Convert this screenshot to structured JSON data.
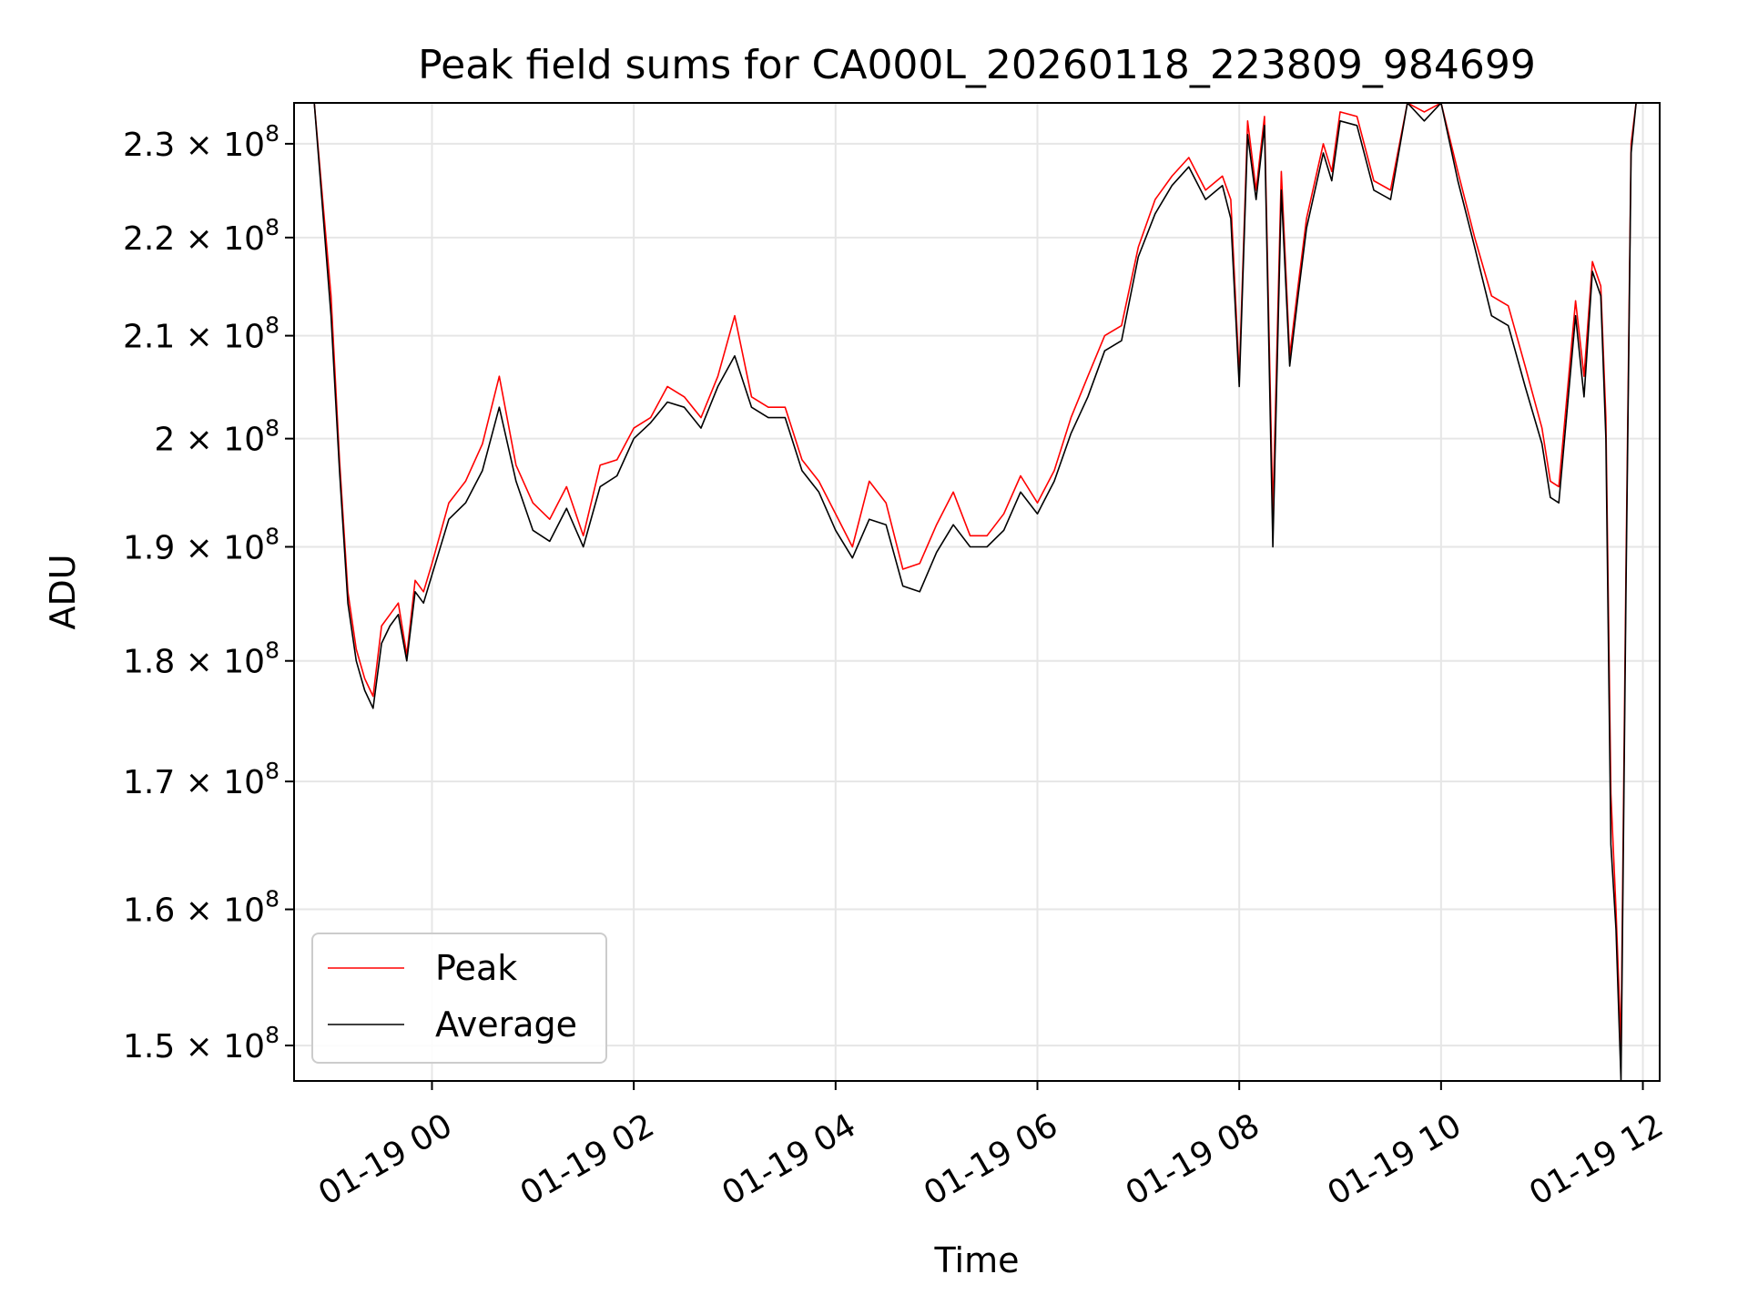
{
  "chart_data": {
    "type": "line",
    "title": "Peak field sums for CA000L_20260118_223809_984699",
    "xlabel": "Time",
    "ylabel": "ADU",
    "x_axis_type": "datetime",
    "xlim": [
      "2026-01-18 22:38",
      "2026-01-19 12:10"
    ],
    "ylim": [
      147500000,
      234500000
    ],
    "y_scale": "log",
    "grid": true,
    "legend": "lower-left",
    "x_ticks": [
      {
        "value": "2026-01-19 00:00",
        "label": "01-19 00"
      },
      {
        "value": "2026-01-19 02:00",
        "label": "01-19 02"
      },
      {
        "value": "2026-01-19 04:00",
        "label": "01-19 04"
      },
      {
        "value": "2026-01-19 06:00",
        "label": "01-19 06"
      },
      {
        "value": "2026-01-19 08:00",
        "label": "01-19 08"
      },
      {
        "value": "2026-01-19 10:00",
        "label": "01-19 10"
      },
      {
        "value": "2026-01-19 12:00",
        "label": "01-19 12"
      }
    ],
    "y_ticks": [
      {
        "value": 150000000,
        "mant": "1.5",
        "exp": "8"
      },
      {
        "value": 160000000,
        "mant": "1.6",
        "exp": "8"
      },
      {
        "value": 170000000,
        "mant": "1.7",
        "exp": "8"
      },
      {
        "value": 180000000,
        "mant": "1.8",
        "exp": "8"
      },
      {
        "value": 190000000,
        "mant": "1.9",
        "exp": "8"
      },
      {
        "value": 200000000,
        "mant": "2",
        "exp": "8"
      },
      {
        "value": 210000000,
        "mant": "2.1",
        "exp": "8"
      },
      {
        "value": 220000000,
        "mant": "2.2",
        "exp": "8"
      },
      {
        "value": 230000000,
        "mant": "2.3",
        "exp": "8"
      }
    ],
    "series": [
      {
        "name": "Peak",
        "color": "#ff0000"
      },
      {
        "name": "Average",
        "color": "#000000"
      }
    ],
    "times": [
      "2026-01-18 22:38",
      "2026-01-18 22:50",
      "2026-01-18 23:00",
      "2026-01-18 23:05",
      "2026-01-18 23:10",
      "2026-01-18 23:15",
      "2026-01-18 23:20",
      "2026-01-18 23:25",
      "2026-01-18 23:30",
      "2026-01-18 23:35",
      "2026-01-18 23:40",
      "2026-01-18 23:45",
      "2026-01-18 23:50",
      "2026-01-18 23:55",
      "2026-01-19 00:00",
      "2026-01-19 00:10",
      "2026-01-19 00:20",
      "2026-01-19 00:30",
      "2026-01-19 00:40",
      "2026-01-19 00:50",
      "2026-01-19 01:00",
      "2026-01-19 01:10",
      "2026-01-19 01:20",
      "2026-01-19 01:30",
      "2026-01-19 01:40",
      "2026-01-19 01:50",
      "2026-01-19 02:00",
      "2026-01-19 02:10",
      "2026-01-19 02:20",
      "2026-01-19 02:30",
      "2026-01-19 02:40",
      "2026-01-19 02:50",
      "2026-01-19 03:00",
      "2026-01-19 03:10",
      "2026-01-19 03:20",
      "2026-01-19 03:30",
      "2026-01-19 03:40",
      "2026-01-19 03:50",
      "2026-01-19 04:00",
      "2026-01-19 04:10",
      "2026-01-19 04:20",
      "2026-01-19 04:30",
      "2026-01-19 04:40",
      "2026-01-19 04:50",
      "2026-01-19 05:00",
      "2026-01-19 05:10",
      "2026-01-19 05:20",
      "2026-01-19 05:30",
      "2026-01-19 05:40",
      "2026-01-19 05:50",
      "2026-01-19 06:00",
      "2026-01-19 06:10",
      "2026-01-19 06:20",
      "2026-01-19 06:30",
      "2026-01-19 06:40",
      "2026-01-19 06:50",
      "2026-01-19 07:00",
      "2026-01-19 07:10",
      "2026-01-19 07:20",
      "2026-01-19 07:30",
      "2026-01-19 07:40",
      "2026-01-19 07:50",
      "2026-01-19 07:55",
      "2026-01-19 08:00",
      "2026-01-19 08:05",
      "2026-01-19 08:10",
      "2026-01-19 08:15",
      "2026-01-19 08:20",
      "2026-01-19 08:25",
      "2026-01-19 08:30",
      "2026-01-19 08:35",
      "2026-01-19 08:40",
      "2026-01-19 08:50",
      "2026-01-19 08:55",
      "2026-01-19 09:00",
      "2026-01-19 09:10",
      "2026-01-19 09:20",
      "2026-01-19 09:30",
      "2026-01-19 09:40",
      "2026-01-19 09:50",
      "2026-01-19 10:00",
      "2026-01-19 10:10",
      "2026-01-19 10:20",
      "2026-01-19 10:30",
      "2026-01-19 10:40",
      "2026-01-19 10:50",
      "2026-01-19 11:00",
      "2026-01-19 11:05",
      "2026-01-19 11:10",
      "2026-01-19 11:20",
      "2026-01-19 11:25",
      "2026-01-19 11:30",
      "2026-01-19 11:35",
      "2026-01-19 11:38",
      "2026-01-19 11:41",
      "2026-01-19 11:44",
      "2026-01-19 11:47",
      "2026-01-19 11:50",
      "2026-01-19 11:53",
      "2026-01-19 11:56",
      "2026-01-19 12:00",
      "2026-01-19 12:10"
    ],
    "peak": [
      234500000,
      234500000,
      214000000,
      198000000,
      186000000,
      181000000,
      178500000,
      177000000,
      183000000,
      184000000,
      185000000,
      180500000,
      187000000,
      186000000,
      188500000,
      194000000,
      196000000,
      199500000,
      206000000,
      197500000,
      194000000,
      192500000,
      195500000,
      191000000,
      197500000,
      198000000,
      201000000,
      202000000,
      205000000,
      204000000,
      202000000,
      206000000,
      212000000,
      204000000,
      203000000,
      203000000,
      198000000,
      196000000,
      193000000,
      190000000,
      196000000,
      194000000,
      188000000,
      188500000,
      192000000,
      195000000,
      191000000,
      191000000,
      193000000,
      196500000,
      194000000,
      197000000,
      202000000,
      206000000,
      210000000,
      211000000,
      219000000,
      224000000,
      226500000,
      228500000,
      225000000,
      226500000,
      224000000,
      206000000,
      232500000,
      225000000,
      233000000,
      193000000,
      227000000,
      208000000,
      215000000,
      222000000,
      230000000,
      227000000,
      233500000,
      233000000,
      226000000,
      225000000,
      234500000,
      233500000,
      234500000,
      227000000,
      220000000,
      214000000,
      213000000,
      207000000,
      201000000,
      196000000,
      195500000,
      213500000,
      206000000,
      217500000,
      215000000,
      202000000,
      169000000,
      160000000,
      150000000,
      189000000,
      230000000,
      234500000,
      234500000,
      234500000
    ],
    "average": [
      234500000,
      234500000,
      212000000,
      197000000,
      185000000,
      180000000,
      177500000,
      176000000,
      181500000,
      183000000,
      184000000,
      180000000,
      186000000,
      185000000,
      187500000,
      192500000,
      194000000,
      197000000,
      203000000,
      196000000,
      191500000,
      190500000,
      193500000,
      190000000,
      195500000,
      196500000,
      200000000,
      201500000,
      203500000,
      203000000,
      201000000,
      205000000,
      208000000,
      203000000,
      202000000,
      202000000,
      197000000,
      195000000,
      191500000,
      189000000,
      192500000,
      192000000,
      186500000,
      186000000,
      189500000,
      192000000,
      190000000,
      190000000,
      191500000,
      195000000,
      193000000,
      196000000,
      200500000,
      204000000,
      208500000,
      209500000,
      218000000,
      222500000,
      225500000,
      227500000,
      224000000,
      225500000,
      222000000,
      205000000,
      231000000,
      224000000,
      232000000,
      190000000,
      225000000,
      207000000,
      214000000,
      221000000,
      229000000,
      226000000,
      232500000,
      232000000,
      225000000,
      224000000,
      234500000,
      232500000,
      234500000,
      226000000,
      219000000,
      212000000,
      211000000,
      205000000,
      199500000,
      194500000,
      194000000,
      212000000,
      204000000,
      216500000,
      214000000,
      200000000,
      165000000,
      158500000,
      147500000,
      187000000,
      229000000,
      234500000,
      234500000,
      234500000
    ]
  }
}
